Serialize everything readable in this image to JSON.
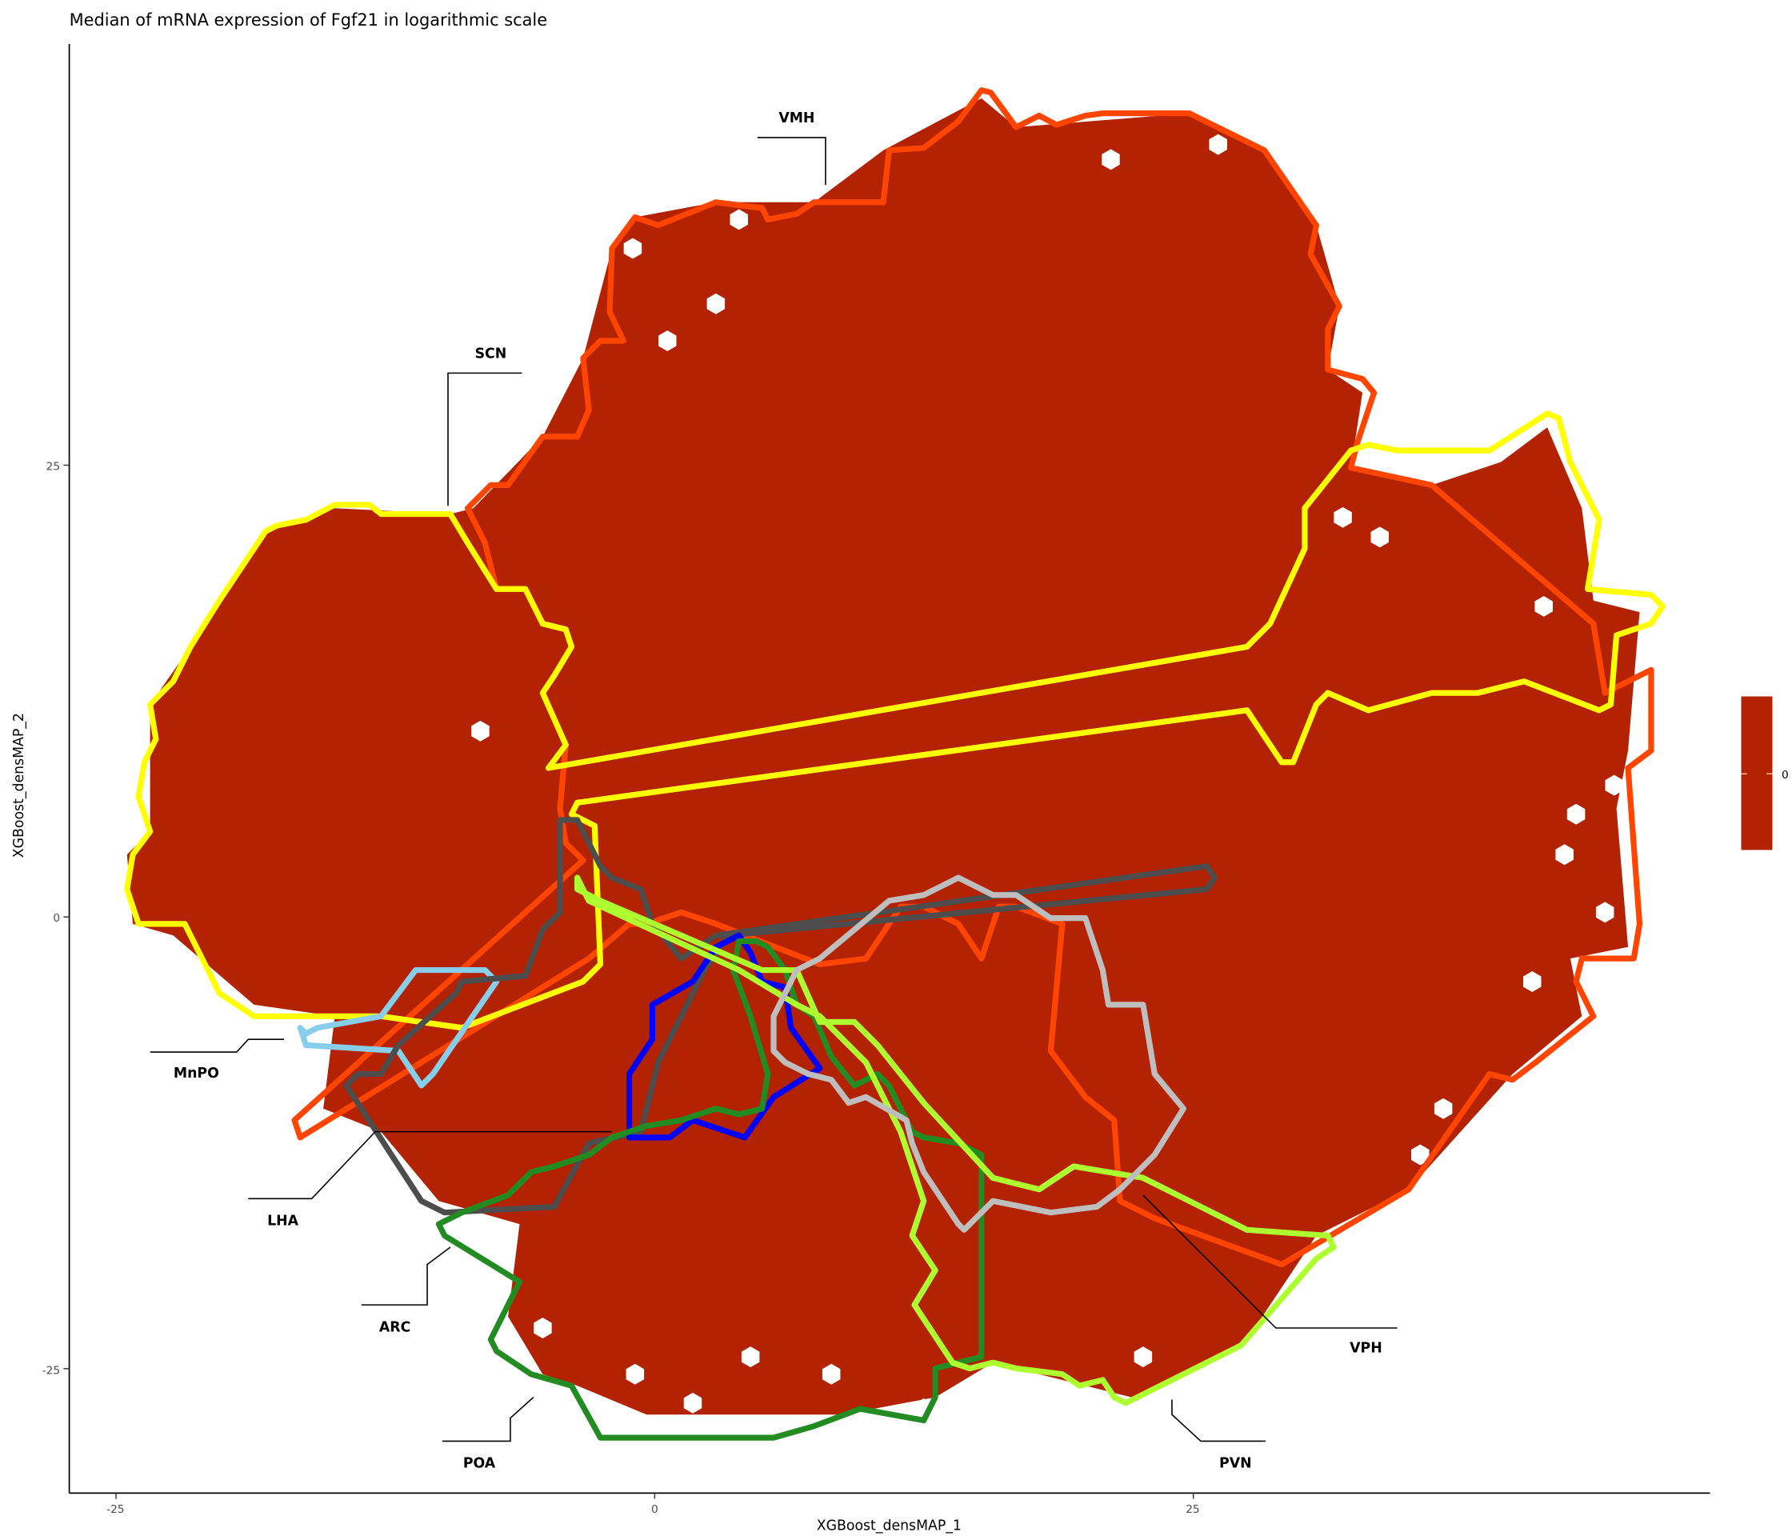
{
  "chart_data": {
    "type": "hexbin",
    "title": "Median of mRNA expression of Fgf21 in logarithmic scale",
    "xlabel": "XGBoost_densMAP_1",
    "ylabel": "XGBoost_densMAP_2",
    "xticks": [
      "-25",
      "0",
      "25"
    ],
    "yticks": [
      "25",
      "0",
      "-25"
    ],
    "xtick_values": [
      -25,
      0,
      25
    ],
    "ytick_values": [
      25,
      0,
      -25
    ],
    "bin_value": 0,
    "fill_color": "#B22203",
    "grid": false,
    "legend": {
      "placement": "right",
      "type": "colorbar",
      "labels": [
        "0"
      ],
      "color": "#B22203"
    },
    "regions": [
      {
        "name": "VMH",
        "color": "#FF4500"
      },
      {
        "name": "SCN",
        "color": "#FFFF00"
      },
      {
        "name": "MnPO",
        "color": "#87CEEB"
      },
      {
        "name": "LHA",
        "color": "#4D4D4D"
      },
      {
        "name": "ARC",
        "color": "#0000FF"
      },
      {
        "name": "POA",
        "color": "#228B22"
      },
      {
        "name": "PVN",
        "color": "#ADFF2F"
      },
      {
        "name": "VPH",
        "color": "#BEBEBE"
      }
    ]
  }
}
